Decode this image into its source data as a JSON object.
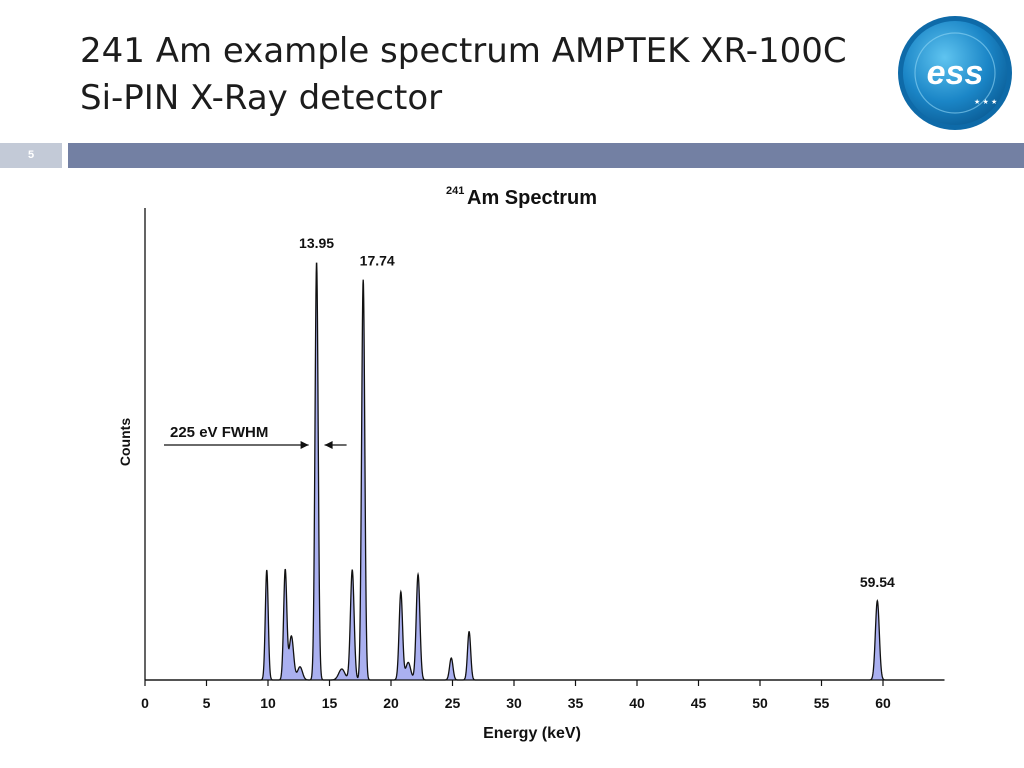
{
  "slide": {
    "title_line1": "241 Am example spectrum AMPTEK XR-100C",
    "title_line2": "Si-PIN X-Ray detector",
    "slide_number": "5",
    "logo_text": "ess",
    "band_color": "#7380a3"
  },
  "chart_data": {
    "type": "area",
    "title_superscript": "241",
    "title_main": "Am Spectrum",
    "xlabel": "Energy (keV)",
    "ylabel": "Counts",
    "xlim": [
      0,
      65
    ],
    "ylim": [
      0,
      100
    ],
    "xticks": [
      0,
      5,
      10,
      15,
      20,
      25,
      30,
      35,
      40,
      45,
      50,
      55,
      60
    ],
    "yticks_shown": false,
    "grid": false,
    "fill_color": "#aab0f0",
    "line_color": "#111111",
    "series": [
      {
        "peaks": [
          {
            "energy": 9.9,
            "counts": 25,
            "width": 0.12
          },
          {
            "energy": 11.4,
            "counts": 25,
            "width": 0.13
          },
          {
            "energy": 11.9,
            "counts": 10,
            "width": 0.18
          },
          {
            "energy": 12.6,
            "counts": 3,
            "width": 0.2
          },
          {
            "energy": 13.95,
            "counts": 95,
            "width": 0.13
          },
          {
            "energy": 16.0,
            "counts": 2.5,
            "width": 0.25
          },
          {
            "energy": 16.85,
            "counts": 25,
            "width": 0.15
          },
          {
            "energy": 17.74,
            "counts": 91,
            "width": 0.13
          },
          {
            "energy": 20.8,
            "counts": 20,
            "width": 0.14
          },
          {
            "energy": 21.4,
            "counts": 4,
            "width": 0.2
          },
          {
            "energy": 22.2,
            "counts": 24,
            "width": 0.15
          },
          {
            "energy": 24.9,
            "counts": 5,
            "width": 0.14
          },
          {
            "energy": 26.35,
            "counts": 11,
            "width": 0.13
          },
          {
            "energy": 59.54,
            "counts": 18,
            "width": 0.16
          }
        ]
      }
    ],
    "annotations": [
      {
        "text": "13.95",
        "energy": 13.95
      },
      {
        "text": "17.74",
        "energy": 17.74
      },
      {
        "text": "59.54",
        "energy": 59.54
      }
    ],
    "fwhm_label": "225 eV FWHM"
  }
}
